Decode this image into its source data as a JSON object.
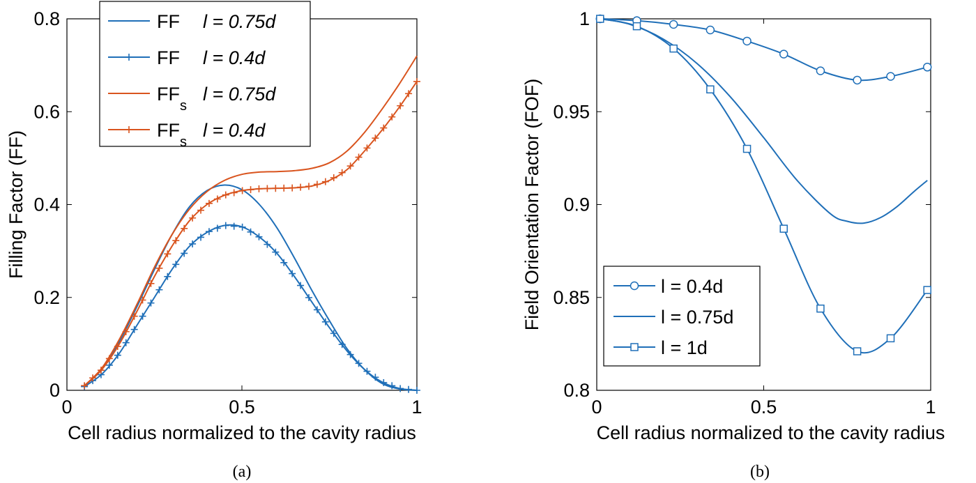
{
  "colors": {
    "blue": "#1f6fb8",
    "orange": "#d9541e",
    "axis": "#000000"
  },
  "chart_data": [
    {
      "type": "line",
      "panel": "a",
      "caption": "(a)",
      "xlabel": "Cell radius normalized to the cavity radius",
      "ylabel": "Filling Factor (FF)",
      "xlim": [
        0,
        1
      ],
      "ylim": [
        0,
        0.8
      ],
      "xticks": [
        0,
        0.5,
        1
      ],
      "xtick_labels": [
        "0",
        "0.5",
        "1"
      ],
      "yticks": [
        0,
        0.2,
        0.4,
        0.6,
        0.8
      ],
      "ytick_labels": [
        "0",
        "0.2",
        "0.4",
        "0.6",
        "0.8"
      ],
      "legend_position": "top-left",
      "series": [
        {
          "name": "FF",
          "sub": "",
          "cond": "l  = 0.75d",
          "color": "blue",
          "marker": "none",
          "x": [
            0.05,
            0.1,
            0.15,
            0.2,
            0.25,
            0.3,
            0.35,
            0.4,
            0.45,
            0.5,
            0.55,
            0.6,
            0.65,
            0.7,
            0.75,
            0.8,
            0.85,
            0.9,
            0.95,
            1.0
          ],
          "y": [
            0.01,
            0.045,
            0.105,
            0.18,
            0.26,
            0.335,
            0.395,
            0.43,
            0.442,
            0.432,
            0.4,
            0.35,
            0.285,
            0.215,
            0.15,
            0.09,
            0.045,
            0.015,
            0.003,
            0.0
          ]
        },
        {
          "name": "FF",
          "sub": "",
          "cond": "l  = 0.4d",
          "color": "blue",
          "marker": "plus",
          "x": [
            0.05,
            0.1,
            0.15,
            0.2,
            0.25,
            0.3,
            0.35,
            0.4,
            0.45,
            0.5,
            0.55,
            0.6,
            0.65,
            0.7,
            0.75,
            0.8,
            0.85,
            0.9,
            0.95,
            1.0
          ],
          "y": [
            0.008,
            0.035,
            0.08,
            0.14,
            0.2,
            0.26,
            0.31,
            0.34,
            0.355,
            0.352,
            0.33,
            0.295,
            0.245,
            0.19,
            0.135,
            0.085,
            0.045,
            0.018,
            0.004,
            0.0
          ]
        },
        {
          "name": "FF",
          "sub": "s",
          "cond": "l  = 0.75d",
          "color": "orange",
          "marker": "none",
          "x": [
            0.05,
            0.1,
            0.15,
            0.2,
            0.25,
            0.3,
            0.35,
            0.4,
            0.45,
            0.5,
            0.55,
            0.6,
            0.65,
            0.7,
            0.75,
            0.8,
            0.85,
            0.9,
            0.95,
            1.0
          ],
          "y": [
            0.01,
            0.048,
            0.11,
            0.185,
            0.265,
            0.335,
            0.39,
            0.428,
            0.452,
            0.465,
            0.47,
            0.471,
            0.473,
            0.478,
            0.49,
            0.515,
            0.555,
            0.605,
            0.66,
            0.72
          ]
        },
        {
          "name": "FF",
          "sub": "s",
          "cond": "l  = 0.4d",
          "color": "orange",
          "marker": "plus",
          "x": [
            0.05,
            0.1,
            0.15,
            0.2,
            0.25,
            0.3,
            0.35,
            0.4,
            0.45,
            0.5,
            0.55,
            0.6,
            0.65,
            0.7,
            0.75,
            0.8,
            0.85,
            0.9,
            0.95,
            1.0
          ],
          "y": [
            0.01,
            0.045,
            0.1,
            0.17,
            0.245,
            0.31,
            0.365,
            0.4,
            0.42,
            0.43,
            0.434,
            0.435,
            0.436,
            0.44,
            0.452,
            0.475,
            0.515,
            0.56,
            0.61,
            0.665
          ]
        }
      ]
    },
    {
      "type": "line",
      "panel": "b",
      "caption": "(b)",
      "xlabel": "Cell radius normalized to the cavity radius",
      "ylabel": "Field Orientation Factor (FOF)",
      "xlim": [
        0,
        1
      ],
      "ylim": [
        0.8,
        1
      ],
      "xticks": [
        0,
        0.5,
        1
      ],
      "xtick_labels": [
        "0",
        "0.5",
        "1"
      ],
      "yticks": [
        0.8,
        0.85,
        0.9,
        0.95,
        1
      ],
      "ytick_labels": [
        "0.8",
        "0.85",
        "0.9",
        "0.95",
        "1"
      ],
      "legend_position": "bottom-left",
      "series": [
        {
          "name": "l = 0.4d",
          "color": "blue",
          "marker": "circle",
          "x": [
            0.01,
            0.12,
            0.23,
            0.34,
            0.45,
            0.56,
            0.67,
            0.78,
            0.88,
            0.99
          ],
          "y": [
            1.0,
            0.999,
            0.997,
            0.994,
            0.988,
            0.981,
            0.972,
            0.967,
            0.969,
            0.974
          ]
        },
        {
          "name": "l = 0.75d",
          "color": "blue",
          "marker": "none",
          "x": [
            0.01,
            0.1,
            0.2,
            0.3,
            0.4,
            0.5,
            0.6,
            0.7,
            0.75,
            0.8,
            0.85,
            0.9,
            0.95,
            0.99
          ],
          "y": [
            1.0,
            0.997,
            0.989,
            0.976,
            0.958,
            0.936,
            0.913,
            0.895,
            0.891,
            0.89,
            0.893,
            0.899,
            0.907,
            0.913
          ]
        },
        {
          "name": "l = 1d",
          "color": "blue",
          "marker": "square",
          "x": [
            0.01,
            0.12,
            0.23,
            0.34,
            0.45,
            0.56,
            0.67,
            0.78,
            0.88,
            0.99
          ],
          "y": [
            1.0,
            0.996,
            0.984,
            0.962,
            0.93,
            0.887,
            0.844,
            0.821,
            0.828,
            0.854
          ]
        }
      ]
    }
  ]
}
